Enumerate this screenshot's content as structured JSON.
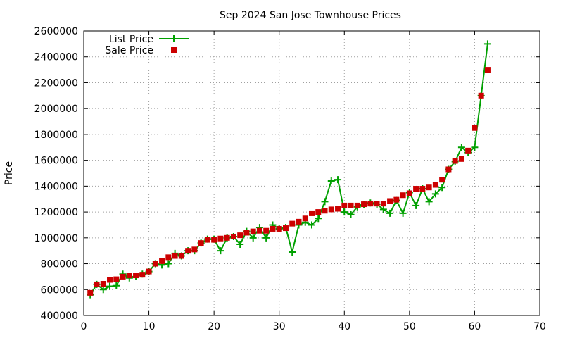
{
  "chart_data": {
    "type": "line",
    "title": "Sep 2024 San Jose Townhouse Prices",
    "xlabel": "",
    "ylabel": "Price",
    "xlim": [
      0,
      70
    ],
    "ylim": [
      400000,
      2600000
    ],
    "xticks": [
      0,
      10,
      20,
      30,
      40,
      50,
      60,
      70
    ],
    "yticks": [
      400000,
      600000,
      800000,
      1000000,
      1200000,
      1400000,
      1600000,
      1800000,
      2000000,
      2200000,
      2400000,
      2600000
    ],
    "xtick_labels": [
      "0",
      "10",
      "20",
      "30",
      "40",
      "50",
      "60",
      "70"
    ],
    "ytick_labels": [
      "400000",
      "600000",
      "800000",
      "1000000",
      "1200000",
      "1400000",
      "1600000",
      "1800000",
      "2000000",
      "2200000",
      "2400000",
      "2600000"
    ],
    "grid": true,
    "legend_position": "top-left",
    "x": [
      1,
      2,
      3,
      4,
      5,
      6,
      7,
      8,
      9,
      10,
      11,
      12,
      13,
      14,
      15,
      16,
      17,
      18,
      19,
      20,
      21,
      22,
      23,
      24,
      25,
      26,
      27,
      28,
      29,
      30,
      31,
      32,
      33,
      34,
      35,
      36,
      37,
      38,
      39,
      40,
      41,
      42,
      43,
      44,
      45,
      46,
      47,
      48,
      49,
      50,
      51,
      52,
      53,
      54,
      55,
      56,
      57,
      58,
      59,
      60,
      61,
      62
    ],
    "series": [
      {
        "name": "List Price",
        "color": "#00a000",
        "marker": "plus",
        "values": [
          560000,
          640000,
          600000,
          625000,
          630000,
          720000,
          690000,
          700000,
          720000,
          740000,
          800000,
          790000,
          800000,
          880000,
          860000,
          900000,
          900000,
          960000,
          990000,
          990000,
          900000,
          1000000,
          1010000,
          950000,
          1050000,
          1000000,
          1080000,
          1000000,
          1100000,
          1070000,
          1080000,
          890000,
          1100000,
          1120000,
          1100000,
          1150000,
          1280000,
          1440000,
          1450000,
          1200000,
          1180000,
          1240000,
          1260000,
          1270000,
          1260000,
          1220000,
          1190000,
          1290000,
          1190000,
          1350000,
          1250000,
          1380000,
          1280000,
          1340000,
          1390000,
          1530000,
          1590000,
          1700000,
          1660000,
          1700000,
          2100000,
          2500000
        ]
      },
      {
        "name": "Sale Price",
        "color": "#cc0000",
        "marker": "square",
        "values": [
          575000,
          640000,
          645000,
          675000,
          680000,
          700000,
          710000,
          710000,
          715000,
          740000,
          800000,
          820000,
          850000,
          860000,
          860000,
          900000,
          910000,
          960000,
          985000,
          985000,
          995000,
          1000000,
          1010000,
          1020000,
          1040000,
          1050000,
          1055000,
          1055000,
          1070000,
          1070000,
          1075000,
          1110000,
          1125000,
          1150000,
          1190000,
          1200000,
          1210000,
          1220000,
          1225000,
          1250000,
          1250000,
          1250000,
          1260000,
          1265000,
          1265000,
          1265000,
          1285000,
          1295000,
          1330000,
          1345000,
          1380000,
          1380000,
          1390000,
          1410000,
          1450000,
          1530000,
          1595000,
          1610000,
          1675000,
          1850000,
          2100000,
          2300000
        ]
      }
    ]
  }
}
